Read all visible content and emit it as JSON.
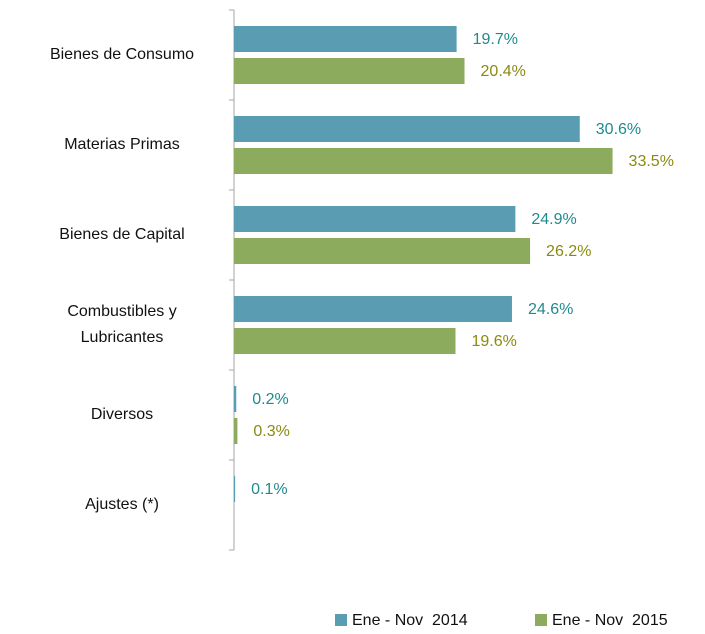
{
  "chart_data": {
    "type": "hbar",
    "categories": [
      "Bienes de Consumo",
      "Materias Primas",
      "Bienes de Capital",
      "Combustibles y Lubricantes",
      "Diversos",
      "Ajustes (*)"
    ],
    "series": [
      {
        "name": "Ene - Nov  2014",
        "color": "#5a9db3",
        "label_color": "#1f8a8f",
        "values": [
          19.7,
          30.6,
          24.9,
          24.6,
          0.2,
          0.1
        ],
        "value_labels": [
          "19.7%",
          "30.6%",
          "24.9%",
          "24.6%",
          "0.2%",
          "0.1%"
        ]
      },
      {
        "name": "Ene - Nov  2015",
        "color": "#8cab5c",
        "label_color": "#8a8a10",
        "values": [
          20.4,
          33.5,
          26.2,
          19.6,
          0.3,
          null
        ],
        "value_labels": [
          "20.4%",
          "33.5%",
          "26.2%",
          "19.6%",
          "0.3%",
          null
        ]
      }
    ],
    "xlim": [
      0,
      40
    ],
    "legend": "bottom"
  }
}
